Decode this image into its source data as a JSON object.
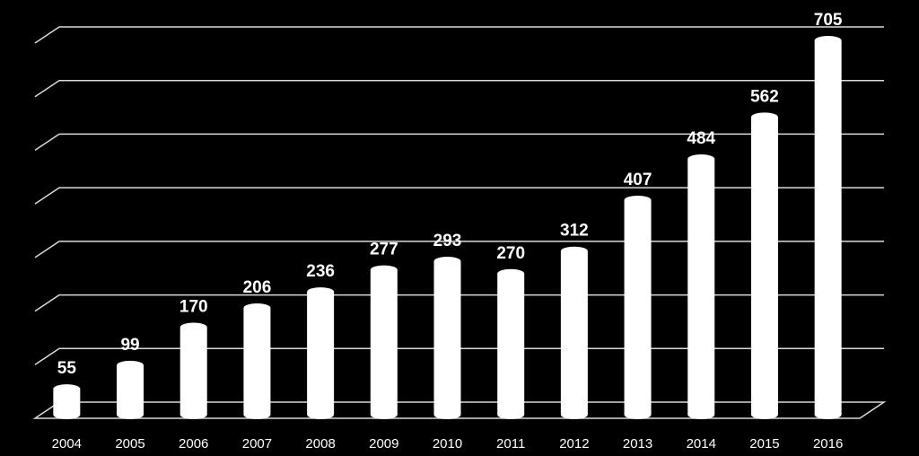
{
  "chart_data": {
    "type": "bar",
    "categories": [
      "2004",
      "2005",
      "2006",
      "2007",
      "2008",
      "2009",
      "2010",
      "2011",
      "2012",
      "2013",
      "2014",
      "2015",
      "2016"
    ],
    "values": [
      55,
      99,
      170,
      206,
      236,
      277,
      293,
      270,
      312,
      407,
      484,
      562,
      705
    ],
    "color": "#ffffff",
    "ylim": [
      0,
      700
    ],
    "yticks": [
      0,
      100,
      200,
      300,
      400,
      500,
      600,
      700
    ],
    "grid": true
  }
}
